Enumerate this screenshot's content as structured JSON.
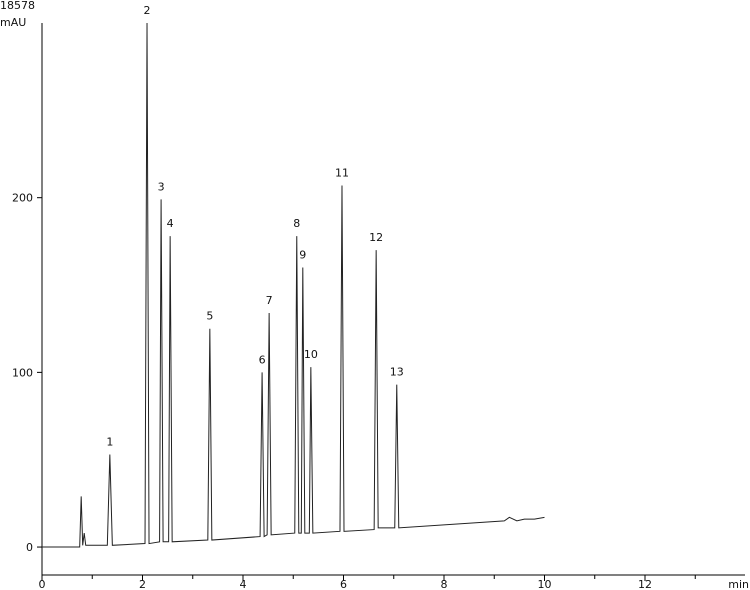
{
  "chart_data": {
    "type": "line",
    "y_top_label": "18578",
    "y_unit": "mAU",
    "x_unit": "min",
    "xlim": [
      0,
      14
    ],
    "xticks": [
      0,
      2,
      4,
      6,
      8,
      10,
      12
    ],
    "xminor_ticks": [
      1,
      3,
      5,
      7,
      9,
      11,
      13
    ],
    "ylim": [
      -16,
      300
    ],
    "yticks": [
      0,
      100,
      200
    ],
    "series": [
      {
        "color": "#222222",
        "x": [
          0,
          0.75,
          0.78,
          0.81,
          0.84,
          0.87,
          1.3,
          1.35,
          1.4,
          2.05,
          2.09,
          2.13,
          2.34,
          2.37,
          2.41,
          2.52,
          2.55,
          2.59,
          3.3,
          3.34,
          3.38,
          4.34,
          4.38,
          4.42,
          4.48,
          4.52,
          4.56,
          5.03,
          5.07,
          5.11,
          5.16,
          5.19,
          5.23,
          5.32,
          5.35,
          5.39,
          5.93,
          5.97,
          6.01,
          6.61,
          6.65,
          6.69,
          7.02,
          7.06,
          7.1,
          9.2,
          9.3,
          9.45,
          9.6,
          9.8,
          10
        ],
        "values": [
          0,
          0,
          29,
          1,
          8,
          1,
          1,
          53,
          1,
          2,
          300,
          2,
          3,
          199,
          3,
          3,
          178,
          3,
          4,
          125,
          4,
          6,
          100,
          6,
          7,
          134,
          7,
          8,
          178,
          8,
          8,
          160,
          8,
          8,
          103,
          8,
          9,
          207,
          9,
          10,
          170,
          11,
          11,
          93,
          11,
          15,
          17,
          15,
          16,
          16,
          17
        ]
      }
    ],
    "peaks": [
      {
        "label": "1",
        "x": 1.35,
        "y": 53
      },
      {
        "label": "2",
        "x": 2.09,
        "y": 300
      },
      {
        "label": "3",
        "x": 2.37,
        "y": 199
      },
      {
        "label": "4",
        "x": 2.55,
        "y": 178
      },
      {
        "label": "5",
        "x": 3.34,
        "y": 125
      },
      {
        "label": "6",
        "x": 4.38,
        "y": 100
      },
      {
        "label": "7",
        "x": 4.52,
        "y": 134
      },
      {
        "label": "8",
        "x": 5.07,
        "y": 178
      },
      {
        "label": "9",
        "x": 5.19,
        "y": 160
      },
      {
        "label": "10",
        "x": 5.35,
        "y": 103
      },
      {
        "label": "11",
        "x": 5.97,
        "y": 207
      },
      {
        "label": "12",
        "x": 6.65,
        "y": 170
      },
      {
        "label": "13",
        "x": 7.06,
        "y": 93
      }
    ]
  }
}
